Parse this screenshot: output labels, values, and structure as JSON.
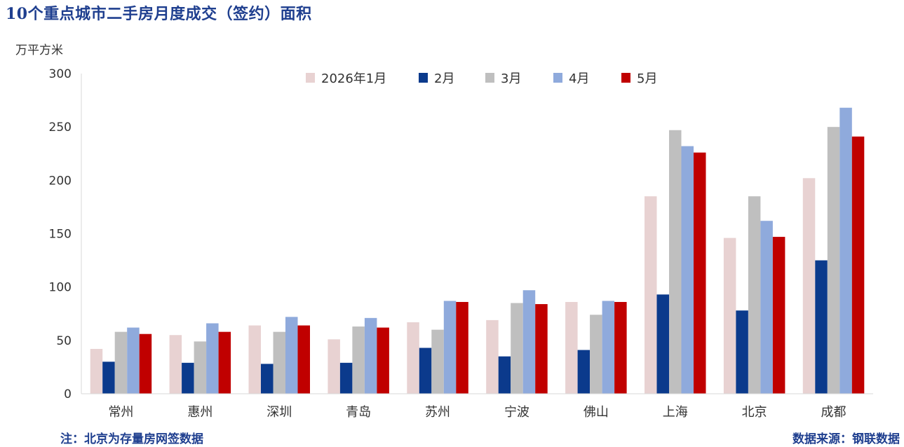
{
  "title": "10个重点城市二手房月度成交（签约）面积",
  "unit": "万平方米",
  "note": "注：北京为存量房网签数据",
  "source": "数据来源：钢联数据",
  "colors": [
    "#e8d2d2",
    "#0b3a8c",
    "#bfbfbf",
    "#8faadc",
    "#c00000"
  ],
  "chart_data": {
    "type": "bar",
    "categories": [
      "常州",
      "惠州",
      "深圳",
      "青岛",
      "苏州",
      "宁波",
      "佛山",
      "上海",
      "北京",
      "成都"
    ],
    "series": [
      {
        "name": "2026年1月",
        "values": [
          42,
          55,
          64,
          51,
          67,
          69,
          86,
          185,
          146,
          202
        ]
      },
      {
        "name": "2月",
        "values": [
          30,
          29,
          28,
          29,
          43,
          35,
          41,
          93,
          78,
          125
        ]
      },
      {
        "name": "3月",
        "values": [
          58,
          49,
          58,
          63,
          60,
          85,
          74,
          247,
          185,
          250
        ]
      },
      {
        "name": "4月",
        "values": [
          62,
          66,
          72,
          71,
          87,
          97,
          87,
          232,
          162,
          268
        ]
      },
      {
        "name": "5月",
        "values": [
          56,
          58,
          64,
          62,
          86,
          84,
          86,
          226,
          147,
          241
        ]
      }
    ],
    "yticks": [
      0,
      50,
      100,
      150,
      200,
      250,
      300
    ],
    "ylim": [
      0,
      300
    ],
    "ylabel": "万平方米",
    "legend_position": "top",
    "grid": false
  }
}
